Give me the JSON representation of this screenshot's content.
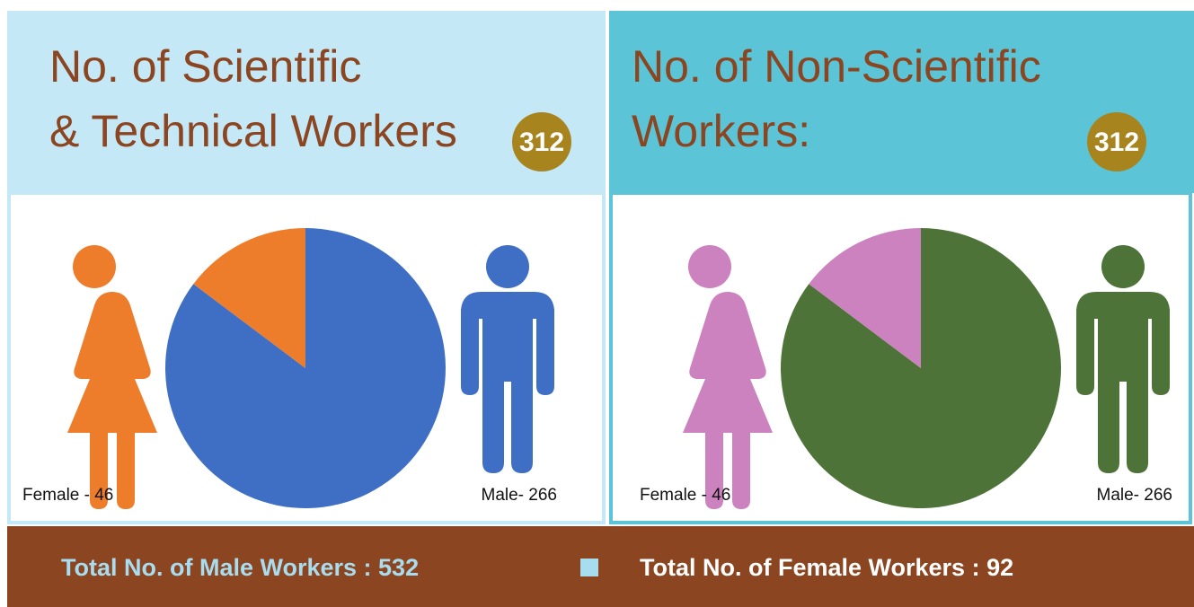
{
  "chart_data": [
    {
      "type": "pie",
      "title": [
        "No. of Scientific",
        "& Technical Workers"
      ],
      "total": 312,
      "categories": [
        "Female - 46",
        "Male- 266"
      ],
      "values": [
        46,
        266
      ],
      "colors": [
        "#ee7d2b",
        "#3f6fc4"
      ]
    },
    {
      "type": "pie",
      "title": [
        "No. of Non-Scientific",
        "Workers:"
      ],
      "total": 312,
      "categories": [
        "Female - 46",
        "Male- 266"
      ],
      "values": [
        46,
        266
      ],
      "colors": [
        "#cc82bf",
        "#4e7339"
      ]
    }
  ],
  "footer": [
    "Total No. of Male Workers : 532",
    "Total No. of Female Workers : 92"
  ]
}
